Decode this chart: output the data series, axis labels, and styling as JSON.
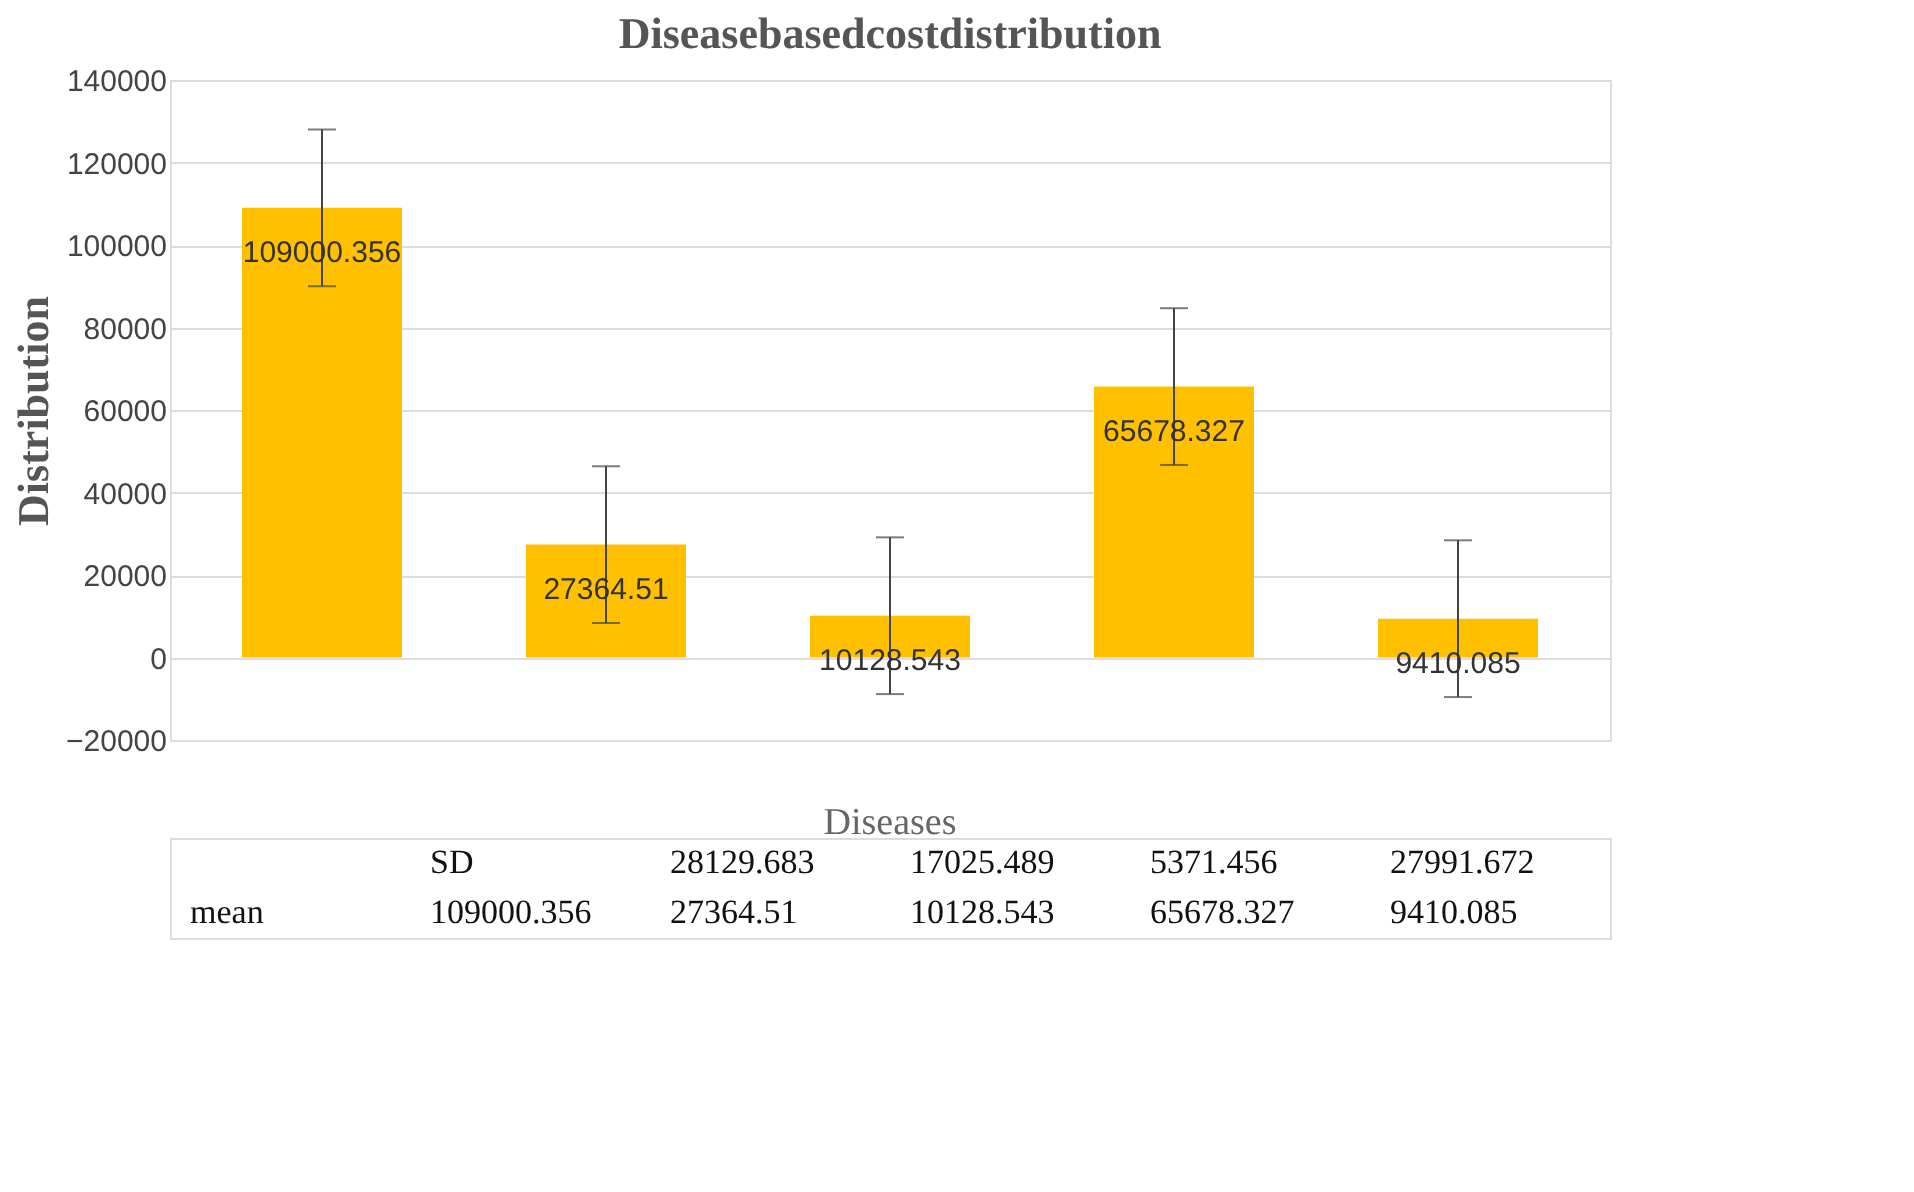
{
  "chart_data": {
    "type": "bar",
    "title": "Diseasebasedcostdistribution",
    "xlabel": "Diseases",
    "ylabel": "Distribution",
    "categories": [
      null,
      null,
      null,
      null,
      null
    ],
    "values": [
      109000.356,
      27364.51,
      10128.543,
      65678.327,
      9410.085
    ],
    "errors": [
      19000,
      19000,
      19000,
      19000,
      19000
    ],
    "value_labels": [
      "109000.356",
      "27364.51",
      "10128.543",
      "65678.327",
      "9410.085"
    ],
    "color": "#ffc000",
    "ylim": [
      -20000,
      140000
    ],
    "yticks": [
      -20000,
      0,
      20000,
      40000,
      60000,
      80000,
      100000,
      120000,
      140000
    ],
    "grid": "y",
    "annotations": [
      "SD",
      "28129.683",
      "17025.489",
      "5371.456",
      "27991.672",
      "mean"
    ]
  }
}
